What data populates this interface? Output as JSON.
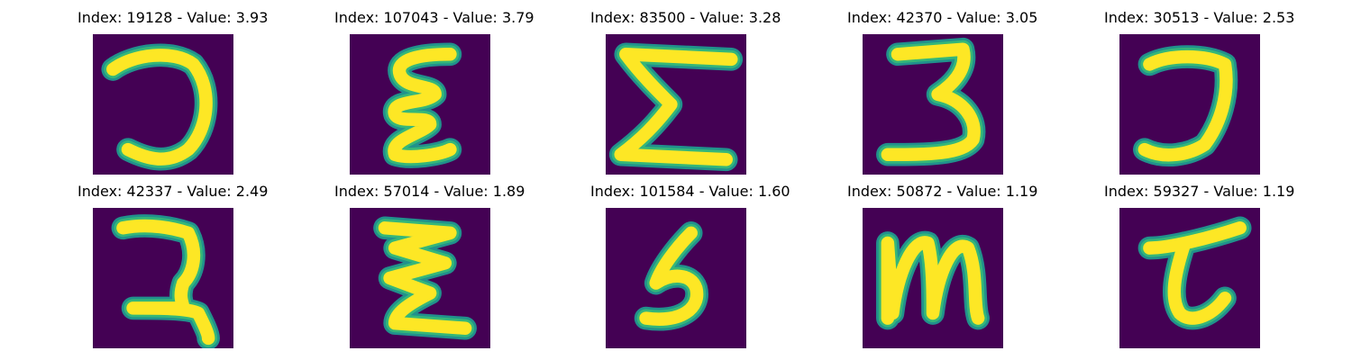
{
  "colors": {
    "background": "#440154",
    "stroke": "#fde725",
    "edge": "#35b779",
    "inner_edge": "#21918c"
  },
  "images": [
    {
      "title": "Index: 19128 - Value: 3.93",
      "glyph": "reversed-c"
    },
    {
      "title": "Index: 107043 - Value: 3.79",
      "glyph": "double-loop-e"
    },
    {
      "title": "Index: 83500 - Value: 3.28",
      "glyph": "sigma"
    },
    {
      "title": "Index: 42370 - Value: 3.05",
      "glyph": "three"
    },
    {
      "title": "Index: 30513 - Value: 2.53",
      "glyph": "hook"
    },
    {
      "title": "Index: 42337 - Value: 2.49",
      "glyph": "two-variant"
    },
    {
      "title": "Index: 57014 - Value: 1.89",
      "glyph": "zigzag-e"
    },
    {
      "title": "Index: 101584 - Value: 1.60",
      "glyph": "five"
    },
    {
      "title": "Index: 50872 - Value: 1.19",
      "glyph": "m"
    },
    {
      "title": "Index: 59327 - Value: 1.19",
      "glyph": "tau"
    }
  ]
}
